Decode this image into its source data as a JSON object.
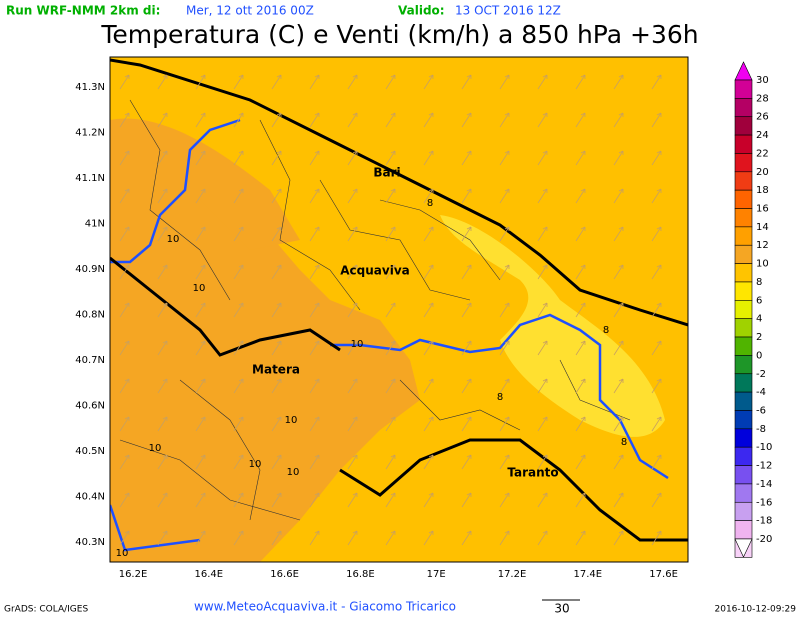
{
  "header": {
    "run_label": "Run WRF-NMM 2km di:",
    "run_date": "Mer, 12 ott 2016 00Z",
    "valid_label": "Valido:",
    "valid_date": "13 OCT 2016 12Z",
    "title": "Temperatura (C) e Venti (km/h) a 850 hPa +36h"
  },
  "map": {
    "lat_ticks": [
      "41.3N",
      "41.2N",
      "41.1N",
      "41N",
      "40.9N",
      "40.8N",
      "40.7N",
      "40.6N",
      "40.5N",
      "40.4N",
      "40.3N"
    ],
    "lon_ticks": [
      "16.2E",
      "16.4E",
      "16.6E",
      "16.8E",
      "17E",
      "17.2E",
      "17.4E",
      "17.6E"
    ],
    "places": [
      "Bari",
      "Acquaviva",
      "Matera",
      "Taranto"
    ],
    "contour_labels": [
      "10",
      "10",
      "10",
      "10",
      "10",
      "10",
      "10",
      "10",
      "8",
      "8",
      "8",
      "8"
    ]
  },
  "colorbar": {
    "labels": [
      "30",
      "28",
      "26",
      "24",
      "22",
      "20",
      "18",
      "16",
      "14",
      "12",
      "10",
      "8",
      "6",
      "4",
      "2",
      "0",
      "-2",
      "-4",
      "-6",
      "-8",
      "-10",
      "-12",
      "-14",
      "-16",
      "-18",
      "-20"
    ],
    "colors": [
      "#f000f0",
      "#d20096",
      "#b40064",
      "#a0003c",
      "#c8002a",
      "#e0141e",
      "#f03c14",
      "#ff6400",
      "#ff8200",
      "#ffa000",
      "#f5a623",
      "#ffc400",
      "#ffe600",
      "#e6f000",
      "#a0d200",
      "#50b400",
      "#1e9628",
      "#00785a",
      "#005a8c",
      "#003cb4",
      "#0000dc",
      "#3c28f0",
      "#7850f0",
      "#a078f0",
      "#c8a0f0",
      "#f0b4f0",
      "#f8d2f8",
      "#ffffff"
    ]
  },
  "footer": {
    "credit": "GrADS: COLA/IGES",
    "site": "www.MeteoAcquaviva.it - Giacomo Tricarico",
    "scale": "30",
    "timestamp": "2016-10-12-09:29"
  }
}
